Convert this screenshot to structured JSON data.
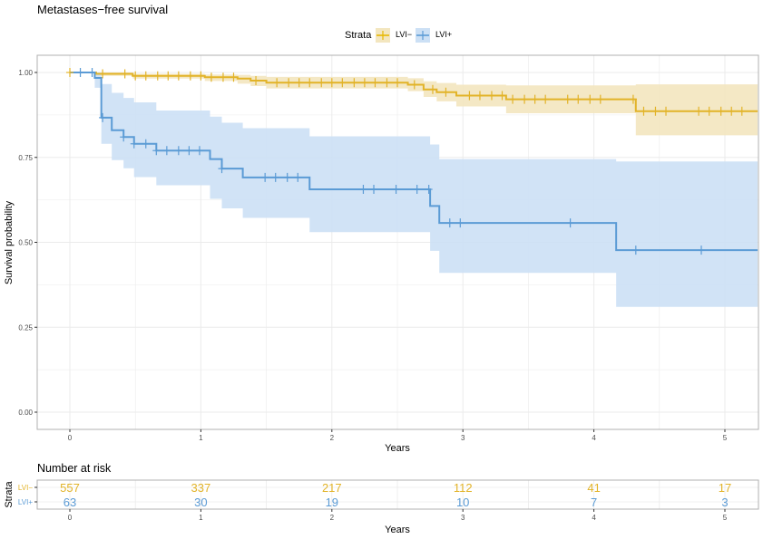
{
  "chart_data": [
    {
      "type": "line",
      "subtype": "kaplan-meier step",
      "title": "Metastases−free survival",
      "xlabel": "Years",
      "ylabel": "Survival probability",
      "xlim": [
        -0.25,
        5.25
      ],
      "ylim": [
        -0.05,
        1.05
      ],
      "xticks": [
        0,
        1,
        2,
        3,
        4,
        5
      ],
      "xtick_labels": [
        "0",
        "1",
        "2",
        "3",
        "4",
        "5"
      ],
      "yticks": [
        0,
        0.25,
        0.5,
        0.75,
        1.0
      ],
      "ytick_labels": [
        "0.00",
        "0.25",
        "0.50",
        "0.75",
        "1.00"
      ],
      "grid": true,
      "legend": {
        "title": "Strata",
        "position": "top"
      },
      "series": [
        {
          "name": "LVI−",
          "color": "#E7B800",
          "steps": [
            [
              0,
              1.0
            ],
            [
              0.2,
              0.996
            ],
            [
              0.48,
              0.99
            ],
            [
              1.03,
              0.986
            ],
            [
              1.28,
              0.982
            ],
            [
              1.38,
              0.976
            ],
            [
              1.5,
              0.97
            ],
            [
              2.58,
              0.964
            ],
            [
              2.7,
              0.95
            ],
            [
              2.8,
              0.942
            ],
            [
              2.95,
              0.932
            ],
            [
              3.33,
              0.921
            ],
            [
              4.32,
              0.886
            ],
            [
              5.25,
              0.886
            ]
          ],
          "ci_lower": [
            [
              0,
              1.0
            ],
            [
              0.2,
              0.99
            ],
            [
              0.48,
              0.982
            ],
            [
              1.03,
              0.975
            ],
            [
              1.28,
              0.967
            ],
            [
              1.38,
              0.96
            ],
            [
              1.5,
              0.953
            ],
            [
              2.58,
              0.945
            ],
            [
              2.7,
              0.928
            ],
            [
              2.8,
              0.915
            ],
            [
              2.95,
              0.9
            ],
            [
              3.33,
              0.88
            ],
            [
              4.32,
              0.815
            ],
            [
              5.25,
              0.815
            ]
          ],
          "ci_upper": [
            [
              0,
              1.0
            ],
            [
              0.2,
              1.0
            ],
            [
              0.48,
              0.996
            ],
            [
              1.03,
              0.994
            ],
            [
              1.28,
              0.993
            ],
            [
              1.38,
              0.99
            ],
            [
              1.5,
              0.987
            ],
            [
              2.58,
              0.983
            ],
            [
              2.7,
              0.974
            ],
            [
              2.8,
              0.969
            ],
            [
              2.95,
              0.964
            ],
            [
              3.33,
              0.962
            ],
            [
              4.32,
              0.965
            ],
            [
              5.25,
              0.965
            ]
          ],
          "censor_times": [
            0,
            0.25,
            0.42,
            0.5,
            0.58,
            0.67,
            0.75,
            0.83,
            0.92,
            1.0,
            1.08,
            1.17,
            1.25,
            1.42,
            1.58,
            1.67,
            1.75,
            1.83,
            1.92,
            2.0,
            2.08,
            2.17,
            2.25,
            2.33,
            2.42,
            2.5,
            2.63,
            2.77,
            2.87,
            3.05,
            3.13,
            3.22,
            3.3,
            3.38,
            3.47,
            3.55,
            3.63,
            3.8,
            3.88,
            3.97,
            4.05,
            4.3,
            4.38,
            4.47,
            4.55,
            4.8,
            4.88,
            4.97,
            5.05,
            5.13
          ]
        },
        {
          "name": "LVI+",
          "color": "#2E9FDF",
          "steps": [
            [
              0,
              1.0
            ],
            [
              0.19,
              0.984
            ],
            [
              0.24,
              0.867
            ],
            [
              0.32,
              0.83
            ],
            [
              0.41,
              0.81
            ],
            [
              0.49,
              0.79
            ],
            [
              0.66,
              0.77
            ],
            [
              1.07,
              0.745
            ],
            [
              1.16,
              0.717
            ],
            [
              1.32,
              0.691
            ],
            [
              1.83,
              0.656
            ],
            [
              2.75,
              0.607
            ],
            [
              2.82,
              0.557
            ],
            [
              4.17,
              0.477
            ],
            [
              5.25,
              0.477
            ]
          ],
          "ci_lower": [
            [
              0,
              1.0
            ],
            [
              0.19,
              0.955
            ],
            [
              0.24,
              0.79
            ],
            [
              0.32,
              0.742
            ],
            [
              0.41,
              0.718
            ],
            [
              0.49,
              0.692
            ],
            [
              0.66,
              0.668
            ],
            [
              1.07,
              0.628
            ],
            [
              1.16,
              0.6
            ],
            [
              1.32,
              0.572
            ],
            [
              1.83,
              0.53
            ],
            [
              2.75,
              0.475
            ],
            [
              2.82,
              0.41
            ],
            [
              4.17,
              0.31
            ],
            [
              5.25,
              0.31
            ]
          ],
          "ci_upper": [
            [
              0,
              1.0
            ],
            [
              0.19,
              1.0
            ],
            [
              0.24,
              0.966
            ],
            [
              0.32,
              0.94
            ],
            [
              0.41,
              0.925
            ],
            [
              0.49,
              0.912
            ],
            [
              0.66,
              0.888
            ],
            [
              1.07,
              0.87
            ],
            [
              1.16,
              0.852
            ],
            [
              1.32,
              0.836
            ],
            [
              1.83,
              0.812
            ],
            [
              2.75,
              0.788
            ],
            [
              2.82,
              0.745
            ],
            [
              4.17,
              0.738
            ],
            [
              5.25,
              0.738
            ]
          ],
          "censor_times": [
            0.08,
            0.17,
            0.25,
            0.41,
            0.49,
            0.58,
            0.66,
            0.74,
            0.83,
            0.91,
            0.99,
            1.16,
            1.49,
            1.57,
            1.66,
            1.74,
            2.24,
            2.32,
            2.49,
            2.65,
            2.74,
            2.9,
            2.98,
            3.82,
            4.32,
            4.82
          ]
        }
      ]
    },
    {
      "type": "table",
      "title": "Number at risk",
      "xlabel": "Years",
      "ylabel": "Strata",
      "xticks": [
        0,
        1,
        2,
        3,
        4,
        5
      ],
      "xtick_labels": [
        "0",
        "1",
        "2",
        "3",
        "4",
        "5"
      ],
      "rows": [
        {
          "name": "LVI−",
          "color": "#E7B800",
          "values": [
            557,
            337,
            217,
            112,
            41,
            17
          ]
        },
        {
          "name": "LVI+",
          "color": "#2E9FDF",
          "values": [
            63,
            30,
            19,
            10,
            7,
            3
          ]
        }
      ]
    }
  ]
}
